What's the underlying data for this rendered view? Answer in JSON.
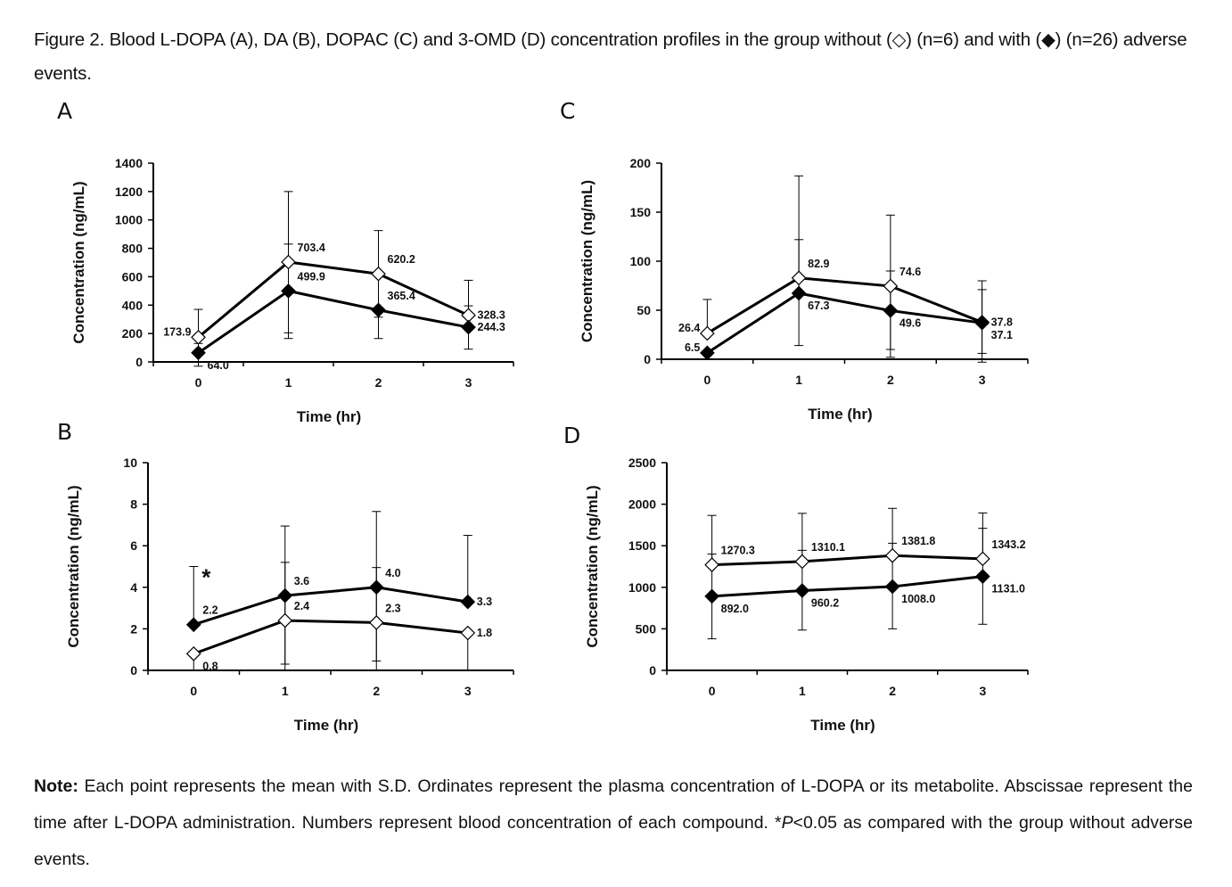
{
  "caption": {
    "text": "Figure 2. Blood L-DOPA (A), DA (B), DOPAC (C) and 3-OMD (D) concentration profiles in the group without (◇) (n=6) and with (◆) (n=26) adverse events."
  },
  "note": {
    "label": "Note:",
    "text_1": " Each point represents the mean with S.D. Ordinates represent the plasma concentration of L-DOPA or its metabolite. Abscissae represent the time after L-DOPA administration. Numbers represent blood concentration of each compound. *",
    "p_italic": "P",
    "text_2": "<0.05 as compared with the group without adverse events."
  },
  "legend": {
    "without": {
      "name": "without adverse events (n=6)",
      "marker": "open-diamond"
    },
    "with": {
      "name": "with adverse events (n=26)",
      "marker": "filled-diamond"
    }
  },
  "colors": {
    "line": "#000000",
    "open_fill": "#ffffff",
    "filled_fill": "#000000"
  },
  "chart_data": [
    {
      "panel": "A",
      "type": "line",
      "title": "Blood L-DOPA",
      "xlabel": "Time (hr)",
      "ylabel": "Concentration (ng/mL)",
      "x": [
        0,
        1,
        2,
        3
      ],
      "xticks": [
        "0",
        "1",
        "2",
        "3"
      ],
      "ylim": [
        0,
        1400
      ],
      "yticks": [
        0,
        200,
        400,
        600,
        800,
        1000,
        1200,
        1400
      ],
      "grid": false,
      "series": [
        {
          "name": "without adverse events",
          "marker": "open-diamond",
          "values": [
            173.9,
            703.4,
            620.2,
            328.3
          ],
          "sd_upper": [
            370,
            1200,
            925,
            575
          ],
          "sd_lower": [
            null,
            205,
            315,
            null
          ],
          "labels": [
            "173.9",
            "703.4",
            "620.2",
            "328.3"
          ],
          "label_pos": [
            "left",
            "upper-right",
            "upper-right",
            "right"
          ]
        },
        {
          "name": "with adverse events",
          "marker": "filled-diamond",
          "values": [
            64.0,
            499.9,
            365.4,
            244.3
          ],
          "sd_upper": [
            130,
            830,
            null,
            395
          ],
          "sd_lower": [
            -30,
            165,
            165,
            90
          ],
          "labels": [
            "64.0",
            "499.9",
            "365.4",
            "244.3"
          ],
          "label_pos": [
            "lower-right",
            "upper-right",
            "upper-right",
            "right"
          ]
        }
      ]
    },
    {
      "panel": "B",
      "type": "line",
      "title": "Blood DA",
      "xlabel": "Time (hr)",
      "ylabel": "Concentration (ng/mL)",
      "x": [
        0,
        1,
        2,
        3
      ],
      "xticks": [
        "0",
        "1",
        "2",
        "3"
      ],
      "ylim": [
        0,
        10
      ],
      "yticks": [
        0,
        2,
        4,
        6,
        8,
        10
      ],
      "grid": false,
      "annotations": [
        {
          "text": "*",
          "x": 0,
          "y": 4.1
        }
      ],
      "series": [
        {
          "name": "with adverse events",
          "marker": "filled-diamond",
          "values": [
            2.2,
            3.6,
            4.0,
            3.3
          ],
          "sd_upper": [
            5.0,
            6.95,
            7.65,
            6.5
          ],
          "sd_lower": [
            null,
            0.3,
            0.45,
            null
          ],
          "labels": [
            "2.2",
            "3.6",
            "4.0",
            "3.3"
          ],
          "label_pos": [
            "upper-right",
            "upper-right",
            "upper-right",
            "right"
          ]
        },
        {
          "name": "without adverse events",
          "marker": "open-diamond",
          "values": [
            0.8,
            2.4,
            2.3,
            1.8
          ],
          "sd_upper": [
            null,
            5.2,
            4.95,
            null
          ],
          "sd_lower": [
            0,
            0,
            0,
            0
          ],
          "labels": [
            "0.8",
            "2.4",
            "2.3",
            "1.8"
          ],
          "label_pos": [
            "lower-right",
            "upper-right",
            "upper-right",
            "right"
          ]
        }
      ]
    },
    {
      "panel": "C",
      "type": "line",
      "title": "Blood DOPAC",
      "xlabel": "Time (hr)",
      "ylabel": "Concentration (ng/mL)",
      "x": [
        0,
        1,
        2,
        3
      ],
      "xticks": [
        "0",
        "1",
        "2",
        "3"
      ],
      "ylim": [
        0,
        200
      ],
      "yticks": [
        0,
        50,
        100,
        150,
        200
      ],
      "grid": false,
      "series": [
        {
          "name": "without adverse events",
          "marker": "open-diamond",
          "values": [
            26.4,
            82.9,
            74.6,
            37.8
          ],
          "sd_upper": [
            61,
            187,
            147,
            80
          ],
          "sd_lower": [
            null,
            null,
            2,
            -3
          ],
          "labels": [
            "26.4",
            "82.9",
            "74.6",
            "37.8"
          ],
          "label_pos": [
            "left",
            "upper-right",
            "upper-right",
            "right"
          ]
        },
        {
          "name": "with adverse events",
          "marker": "filled-diamond",
          "values": [
            6.5,
            67.3,
            49.6,
            37.1
          ],
          "sd_upper": [
            null,
            122,
            90,
            71
          ],
          "sd_lower": [
            null,
            14,
            10,
            6
          ],
          "labels": [
            "6.5",
            "67.3",
            "49.6",
            "37.1"
          ],
          "label_pos": [
            "left",
            "lower-right",
            "lower-right",
            "lower-right"
          ]
        }
      ]
    },
    {
      "panel": "D",
      "type": "line",
      "title": "Blood 3-OMD",
      "xlabel": "Time (hr)",
      "ylabel": "Concentration (ng/mL)",
      "x": [
        0,
        1,
        2,
        3
      ],
      "xticks": [
        "0",
        "1",
        "2",
        "3"
      ],
      "ylim": [
        0,
        2500
      ],
      "yticks": [
        0,
        500,
        1000,
        1500,
        2000,
        2500
      ],
      "grid": false,
      "series": [
        {
          "name": "without adverse events",
          "marker": "open-diamond",
          "values": [
            1270.3,
            1310.1,
            1381.8,
            1343.2
          ],
          "sd_upper": [
            1865,
            1890,
            1950,
            1895
          ],
          "sd_lower": [
            null,
            null,
            null,
            null
          ],
          "labels": [
            "1270.3",
            "1310.1",
            "1381.8",
            "1343.2"
          ],
          "label_pos": [
            "upper-right",
            "upper-right",
            "upper-right",
            "upper-right"
          ]
        },
        {
          "name": "with adverse events",
          "marker": "filled-diamond",
          "values": [
            892.0,
            960.2,
            1008.0,
            1131.0
          ],
          "sd_upper": [
            1400,
            1445,
            1530,
            1710
          ],
          "sd_lower": [
            380,
            485,
            500,
            555
          ],
          "labels": [
            "892.0",
            "960.2",
            "1008.0",
            "1131.0"
          ],
          "label_pos": [
            "lower-right",
            "lower-right",
            "lower-right",
            "lower-right"
          ]
        }
      ]
    }
  ],
  "panels": {
    "A": "A",
    "B": "B",
    "C": "C",
    "D": "D"
  }
}
